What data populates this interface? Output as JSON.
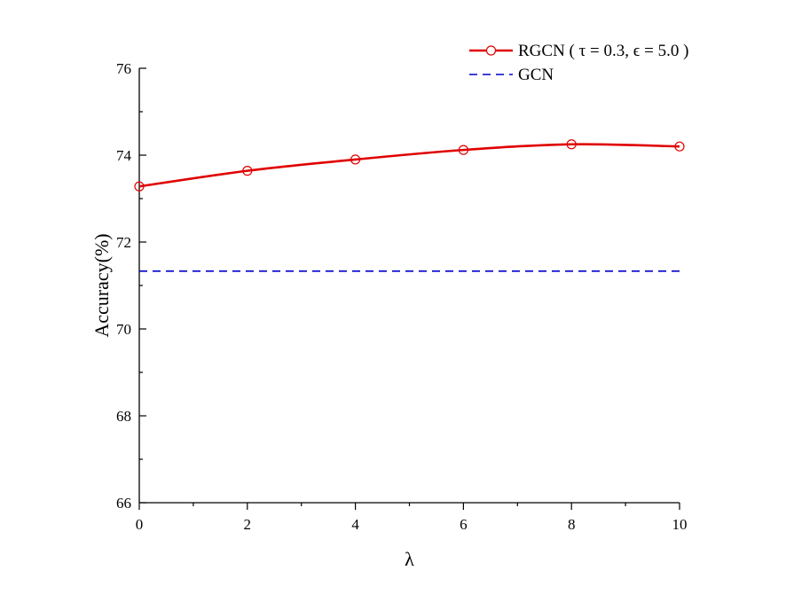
{
  "chart_data": {
    "type": "line",
    "xlabel": "λ",
    "ylabel": "Accuracy(%)",
    "xlim": [
      0,
      10
    ],
    "ylim": [
      66,
      76
    ],
    "x_major_ticks": [
      0,
      2,
      4,
      6,
      8,
      10
    ],
    "y_major_ticks": [
      66,
      68,
      70,
      72,
      74,
      76
    ],
    "grid": false,
    "legend": {
      "placement": "top-right"
    },
    "series": [
      {
        "name": "RGCN ( τ = 0.3, ϵ = 5.0 )",
        "color": "#e00000",
        "line_style": "solid",
        "marker": "open-circle",
        "x": [
          0,
          2,
          4,
          6,
          8,
          10
        ],
        "values": [
          73.28,
          73.64,
          73.9,
          74.12,
          74.25,
          74.2
        ]
      },
      {
        "name": "GCN",
        "color": "#0000cc",
        "line_style": "dashed",
        "marker": "none",
        "x": [
          0,
          10
        ],
        "values": [
          71.33,
          71.33
        ]
      }
    ]
  }
}
